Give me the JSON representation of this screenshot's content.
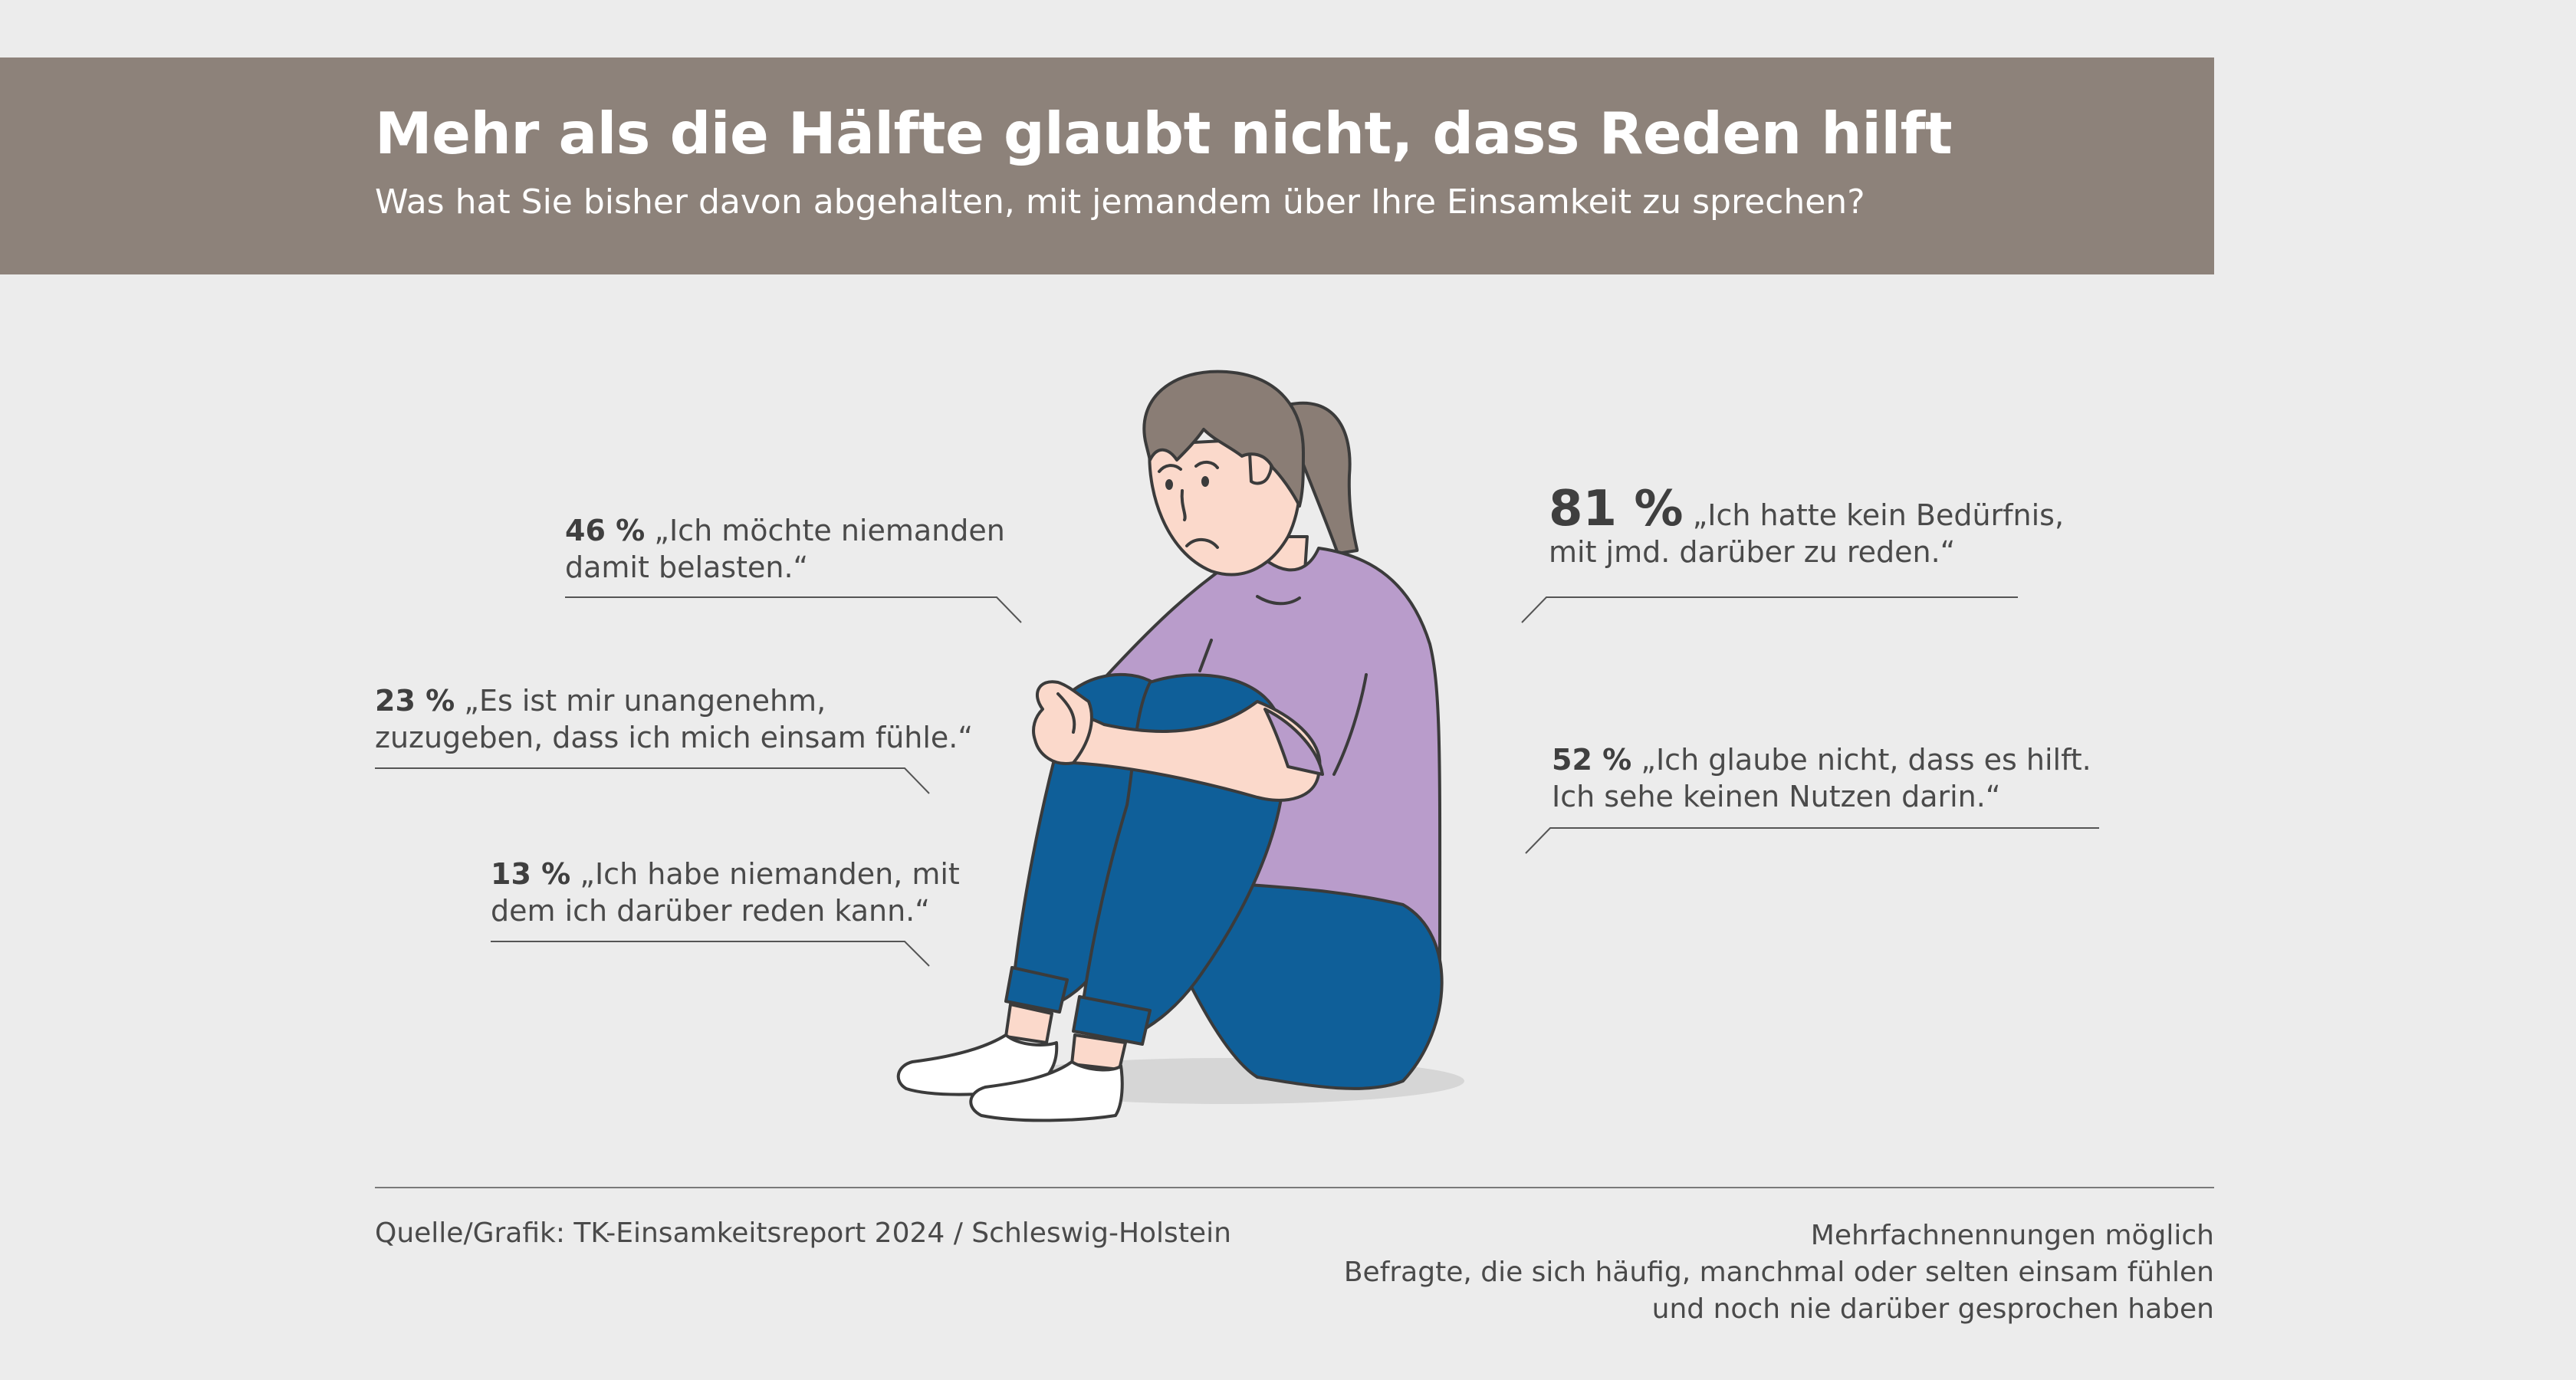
{
  "header": {
    "title": "Mehr als die Hälfte glaubt nicht, dass Reden hilft",
    "subtitle": "Was hat Sie bisher davon abgehalten, mit jemandem über Ihre Einsamkeit zu sprechen?"
  },
  "stats": [
    {
      "percent": "46 %",
      "line1": "„Ich möchte niemanden",
      "line2": "damit belasten.“"
    },
    {
      "percent": "23 %",
      "line1": "„Es ist mir unangenehm,",
      "line2": "zuzugeben, dass ich mich einsam fühle.“"
    },
    {
      "percent": "13 %",
      "line1": "„Ich habe niemanden, mit",
      "line2": "dem ich darüber reden kann.“"
    },
    {
      "percent": "81 %",
      "line1": "„Ich hatte kein Bedürfnis,",
      "line2": "mit jmd. darüber zu reden.“"
    },
    {
      "percent": "52 %",
      "line1": "„Ich glaube nicht, dass es hilft.",
      "line2": "Ich sehe keinen Nutzen darin.“"
    }
  ],
  "footer": {
    "source": "Quelle/Grafik: TK-Einsamkeitsreport 2024 / Schleswig-Holstein",
    "note1": "Mehrfachnennungen möglich",
    "note2": "Befragte, die sich häufig, manchmal oder selten einsam fühlen",
    "note3": "und noch nie darüber gesprochen haben"
  },
  "colors": {
    "banner": "#8d827a",
    "background": "#ececec",
    "shirt": "#b99ccb",
    "jeans": "#0f5f99",
    "hair": "#8a7d75",
    "skin": "#fbd9cb"
  }
}
